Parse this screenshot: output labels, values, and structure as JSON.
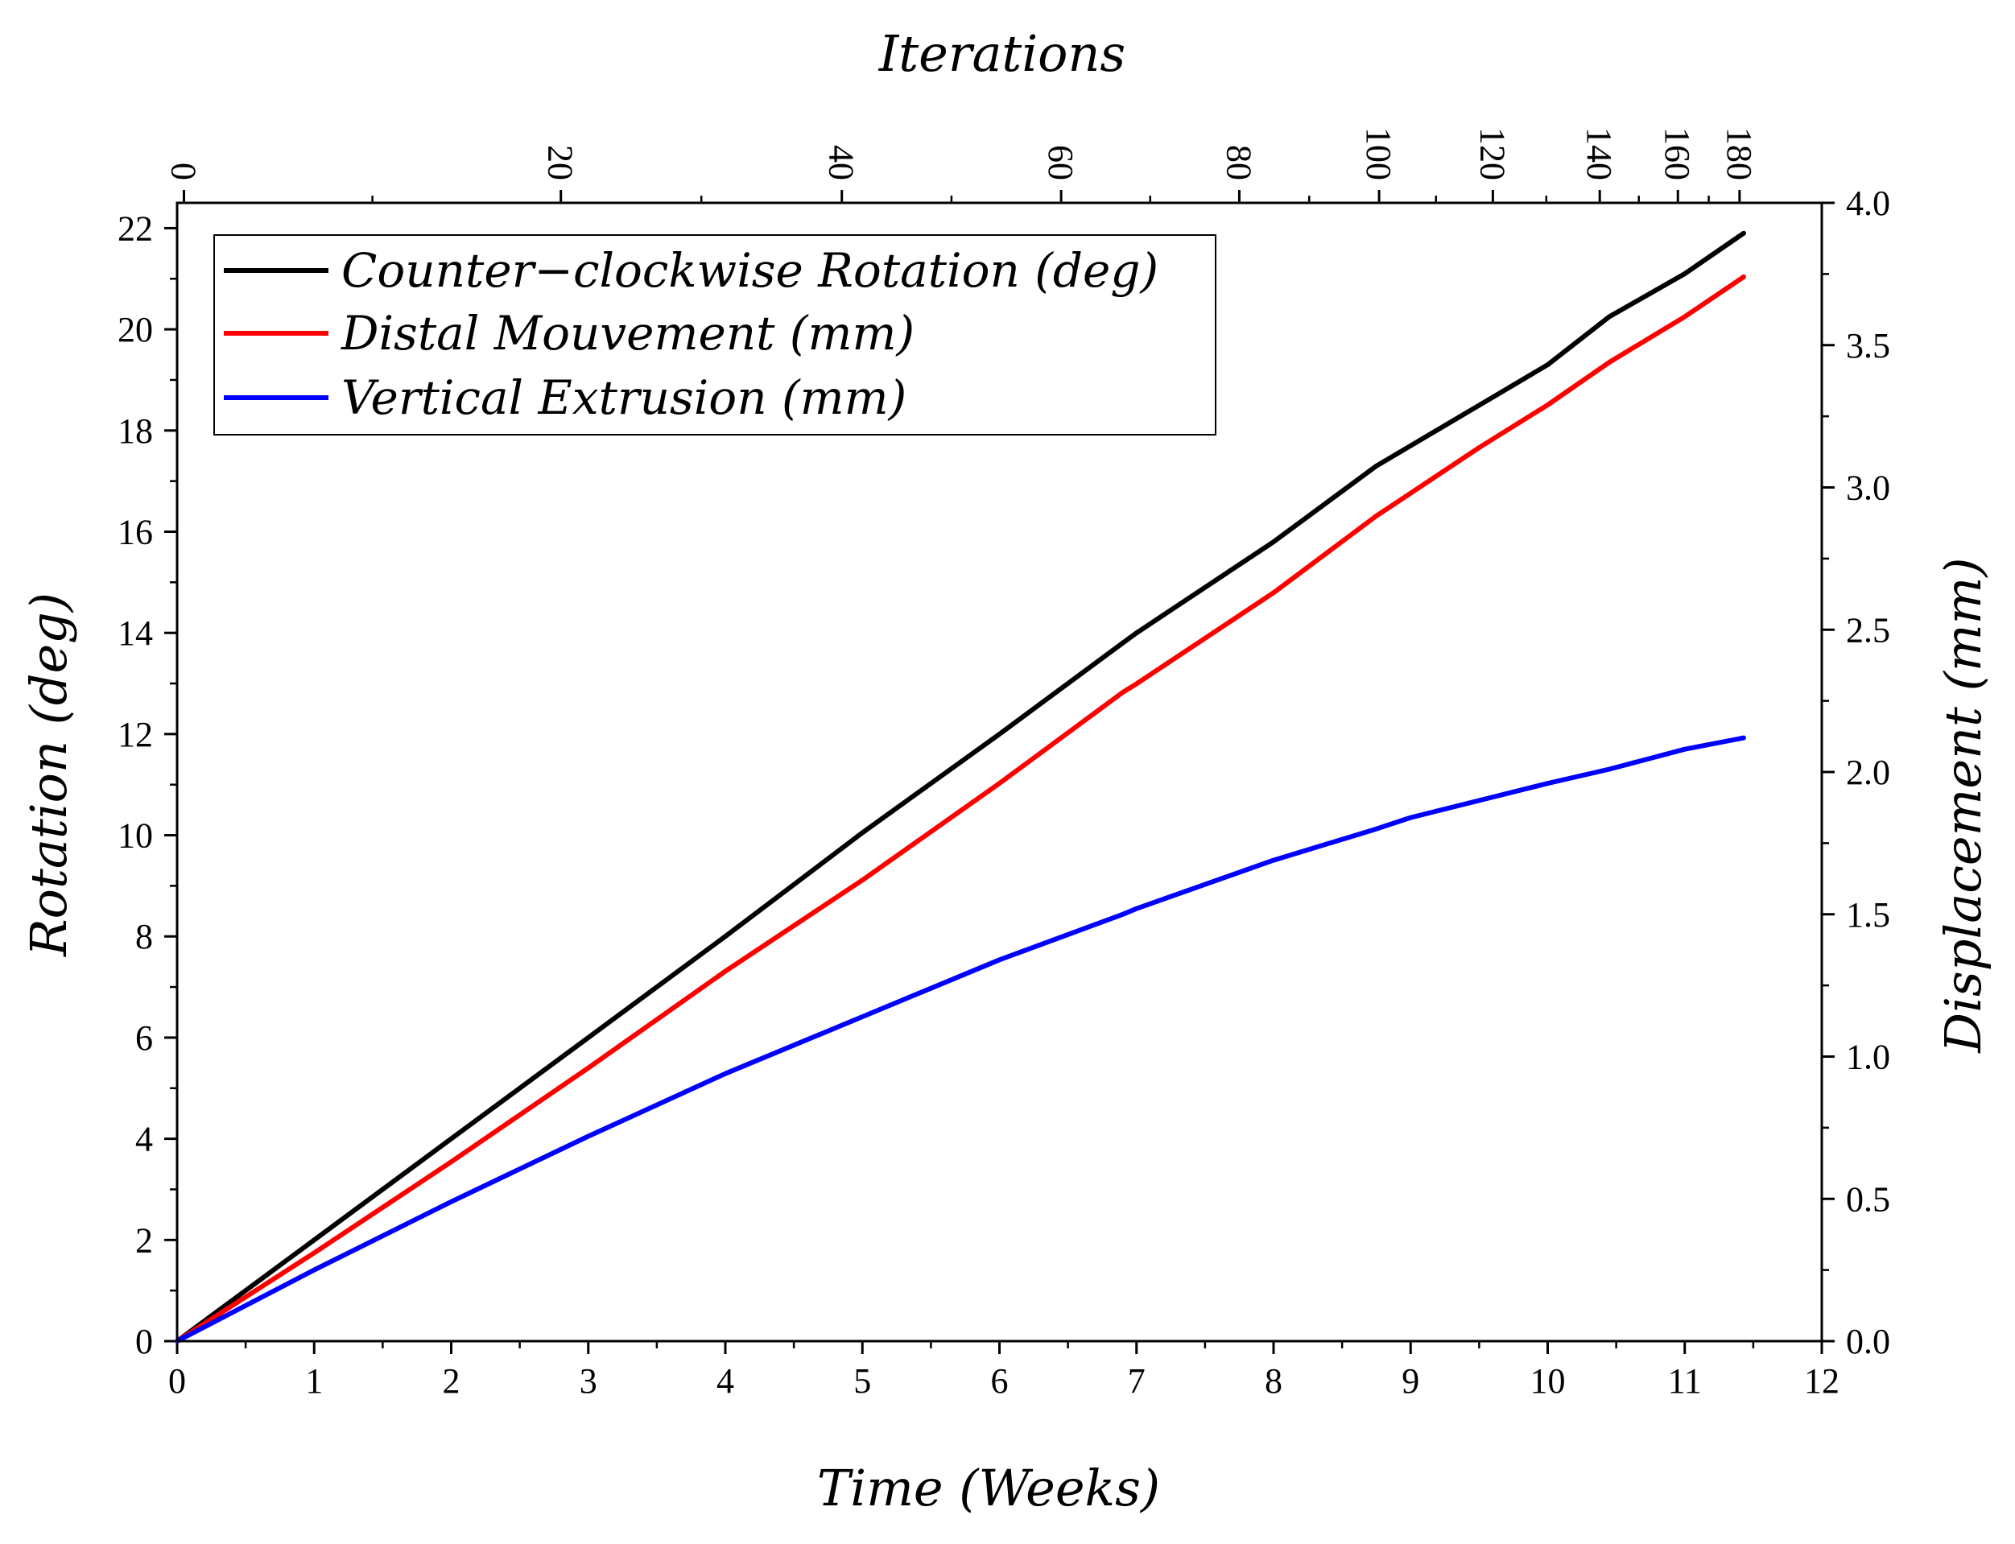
{
  "chart_data": {
    "type": "line",
    "title": "",
    "xlabel": "Time (Weeks)",
    "ylabel_left": "Rotation (deg)",
    "ylabel_right": "Displacement (mm)",
    "xlabel_top": "Iterations",
    "xlim": [
      0,
      12
    ],
    "ylim_left": [
      0,
      22.5
    ],
    "ylim_right": [
      0,
      4.0
    ],
    "x_ticks": [
      "0",
      "1",
      "2",
      "3",
      "4",
      "5",
      "6",
      "7",
      "8",
      "9",
      "10",
      "11",
      "12"
    ],
    "y_left_ticks": [
      "0",
      "2",
      "4",
      "6",
      "8",
      "10",
      "12",
      "14",
      "16",
      "18",
      "20",
      "22"
    ],
    "y_right_ticks": [
      "0.0",
      "0.5",
      "1.0",
      "1.5",
      "2.0",
      "2.5",
      "3.0",
      "3.5",
      "4.0"
    ],
    "top_ticks": [
      {
        "label": "0",
        "week": 0.05
      },
      {
        "label": "20",
        "week": 2.8
      },
      {
        "label": "40",
        "week": 4.85
      },
      {
        "label": "60",
        "week": 6.45
      },
      {
        "label": "80",
        "week": 7.75
      },
      {
        "label": "100",
        "week": 8.77
      },
      {
        "label": "120",
        "week": 9.6
      },
      {
        "label": "140",
        "week": 10.38
      },
      {
        "label": "160",
        "week": 10.95
      },
      {
        "label": "180",
        "week": 11.4
      }
    ],
    "legend_position": "top-left",
    "grid": false,
    "series": [
      {
        "name": "Counter−clockwise Rotation (deg)",
        "axis": "left",
        "color": "#000000",
        "x": [
          0,
          1,
          2,
          3,
          4,
          5,
          6,
          6.9,
          7,
          8,
          8.75,
          9,
          9.5,
          10,
          10.45,
          11,
          11.43
        ],
        "y": [
          0,
          2.0,
          4.0,
          6.0,
          8.0,
          10.05,
          12.0,
          13.8,
          14.0,
          15.8,
          17.3,
          17.7,
          18.5,
          19.3,
          20.25,
          21.1,
          21.9
        ]
      },
      {
        "name": "Distal Mouvement (mm)",
        "axis": "right",
        "color": "#ff0000",
        "x": [
          0,
          1,
          2,
          3,
          4,
          5,
          6,
          6.9,
          7,
          8,
          8.75,
          9,
          9.5,
          10,
          10.45,
          11,
          11.43
        ],
        "y": [
          0,
          0.31,
          0.63,
          0.96,
          1.3,
          1.62,
          1.96,
          2.28,
          2.31,
          2.63,
          2.9,
          2.98,
          3.14,
          3.29,
          3.44,
          3.6,
          3.74
        ]
      },
      {
        "name": "Vertical Extrusion (mm)",
        "axis": "right",
        "color": "#0000ff",
        "x": [
          0,
          1,
          2,
          3,
          4,
          5,
          6,
          6.9,
          7,
          8,
          8.75,
          9,
          9.5,
          10,
          10.45,
          11,
          11.43
        ],
        "y": [
          0,
          0.25,
          0.49,
          0.72,
          0.94,
          1.14,
          1.34,
          1.5,
          1.52,
          1.69,
          1.8,
          1.84,
          1.9,
          1.96,
          2.01,
          2.08,
          2.12
        ]
      }
    ]
  }
}
